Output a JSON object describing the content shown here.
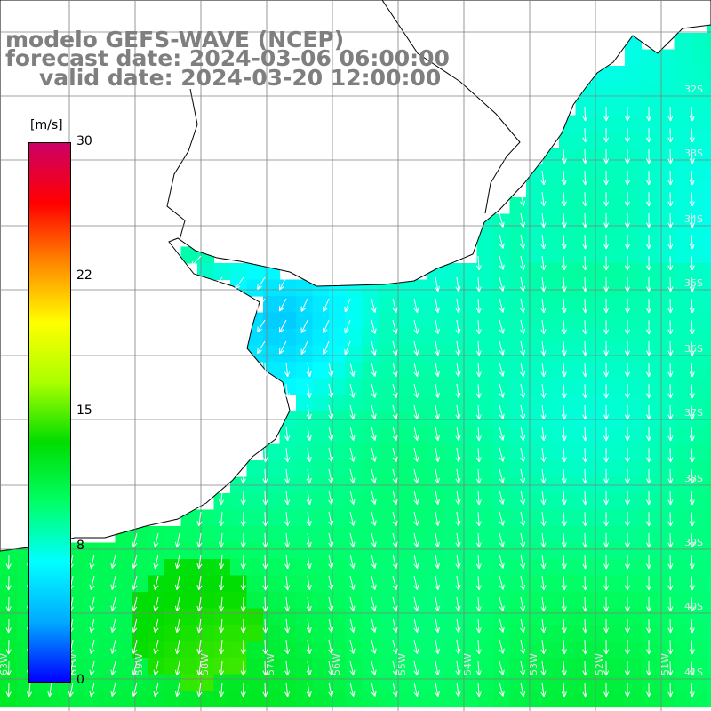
{
  "title": {
    "line1": "modelo GEFS-WAVE (NCEP)",
    "line2": "forecast date: 2024-03-06 06:00:00",
    "line3": "valid date: 2024-03-20 12:00:00"
  },
  "colorbar": {
    "unit": "[m/s]",
    "ticks": [
      "30",
      "22",
      "15",
      "8",
      "0"
    ],
    "tick_values": [
      30,
      22,
      15,
      8,
      0
    ],
    "range": [
      0,
      30
    ],
    "colors": [
      "#0000ff",
      "#00aaff",
      "#00ffff",
      "#00ff66",
      "#00dd00",
      "#aaff00",
      "#ffff00",
      "#ff8800",
      "#ff0000",
      "#cc0066"
    ]
  },
  "map": {
    "land_color": "#ffffff",
    "coast_color": "#000000",
    "grid_color": "#808080",
    "arrow_color": "#ffffff",
    "lat_labels": [
      "32S",
      "33S",
      "34S",
      "35S",
      "36S",
      "37S",
      "38S",
      "39S",
      "40S",
      "41S"
    ],
    "lon_labels": [
      "63W",
      "61W",
      "59W",
      "58W",
      "57W",
      "56W",
      "55W",
      "54W",
      "53W",
      "52W",
      "51W"
    ]
  }
}
